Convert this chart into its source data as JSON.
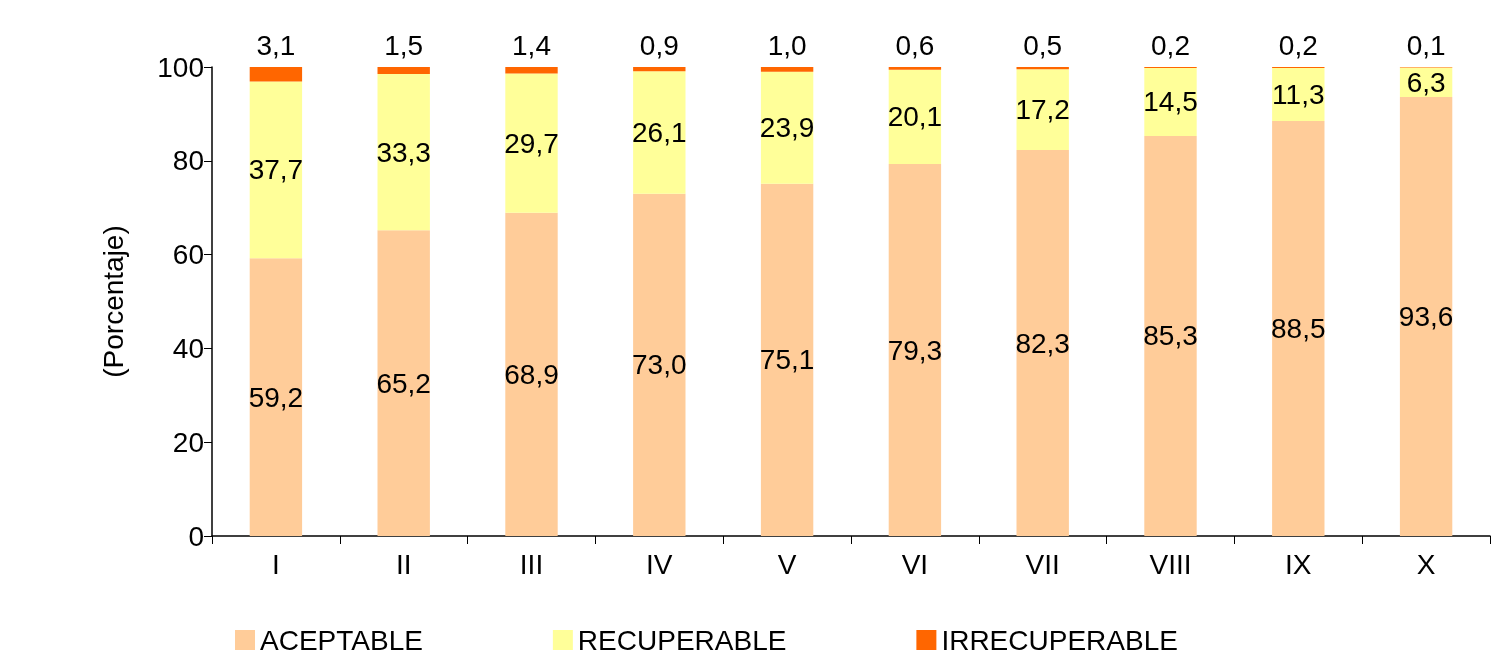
{
  "chart_data": {
    "type": "bar",
    "stacked": true,
    "ylabel": "(Porcentaje)",
    "categories": [
      "I",
      "II",
      "III",
      "IV",
      "V",
      "VI",
      "VII",
      "VIII",
      "IX",
      "X"
    ],
    "series": [
      {
        "name": "ACEPTABLE",
        "color": "#ffcc99",
        "values": [
          59.2,
          65.2,
          68.9,
          73.0,
          75.1,
          79.3,
          82.3,
          85.3,
          88.5,
          93.6
        ],
        "value_labels": [
          "59,2",
          "65,2",
          "68,9",
          "73,0",
          "75,1",
          "79,3",
          "82,3",
          "85,3",
          "88,5",
          "93,6"
        ]
      },
      {
        "name": "RECUPERABLE",
        "color": "#ffff99",
        "values": [
          37.7,
          33.3,
          29.7,
          26.1,
          23.9,
          20.1,
          17.2,
          14.5,
          11.3,
          6.3
        ],
        "value_labels": [
          "37,7",
          "33,3",
          "29,7",
          "26,1",
          "23,9",
          "20,1",
          "17,2",
          "14,5",
          "11,3",
          "6,3"
        ]
      },
      {
        "name": "IRRECUPERABLE",
        "color": "#ff6600",
        "values": [
          3.1,
          1.5,
          1.4,
          0.9,
          1.0,
          0.6,
          0.5,
          0.2,
          0.2,
          0.1
        ],
        "value_labels": [
          "3,1",
          "1,5",
          "1,4",
          "0,9",
          "1,0",
          "0,6",
          "0,5",
          "0,2",
          "0,2",
          "0,1"
        ]
      }
    ],
    "ylim": [
      0,
      100
    ],
    "yticks": [
      0,
      20,
      40,
      60,
      80,
      100
    ],
    "grid": false,
    "legend": "bottom"
  }
}
